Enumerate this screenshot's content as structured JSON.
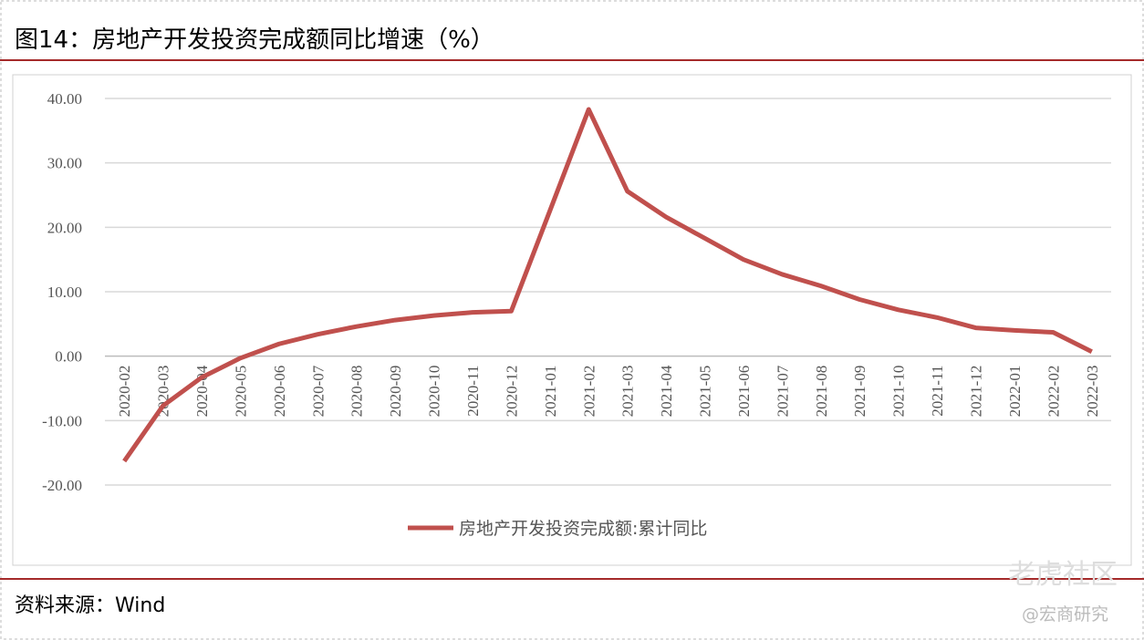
{
  "chart_data": {
    "type": "line",
    "title": "图14：房地产开发投资完成额同比增速（%）",
    "source": "资料来源：Wind",
    "watermark": [
      "老虎社区",
      "@宏商研究"
    ],
    "categories": [
      "2020-02",
      "2020-03",
      "2020-04",
      "2020-05",
      "2020-06",
      "2020-07",
      "2020-08",
      "2020-09",
      "2020-10",
      "2020-11",
      "2020-12",
      "2021-01",
      "2021-02",
      "2021-03",
      "2021-04",
      "2021-05",
      "2021-06",
      "2021-07",
      "2021-08",
      "2021-09",
      "2021-10",
      "2021-11",
      "2021-12",
      "2022-01",
      "2022-02",
      "2022-03"
    ],
    "series": [
      {
        "name": "房地产开发投资完成额:累计同比",
        "color": "#c0504d",
        "values": [
          -16.3,
          -7.7,
          -3.3,
          -0.3,
          1.9,
          3.4,
          4.6,
          5.6,
          6.3,
          6.8,
          7.0,
          22.6,
          38.3,
          25.6,
          21.6,
          18.3,
          15.0,
          12.7,
          10.9,
          8.8,
          7.2,
          6.0,
          4.4,
          4.0,
          3.7,
          0.7
        ]
      }
    ],
    "ylim": [
      -20,
      40
    ],
    "yticks": [
      {
        "value": -20,
        "label": "-20.00"
      },
      {
        "value": -10,
        "label": "-10.00"
      },
      {
        "value": 0,
        "label": "0.00"
      },
      {
        "value": 10,
        "label": "10.00"
      },
      {
        "value": 20,
        "label": "20.00"
      },
      {
        "value": 30,
        "label": "30.00"
      },
      {
        "value": 40,
        "label": "40.00"
      }
    ],
    "grid": true,
    "legend": "bottom"
  }
}
